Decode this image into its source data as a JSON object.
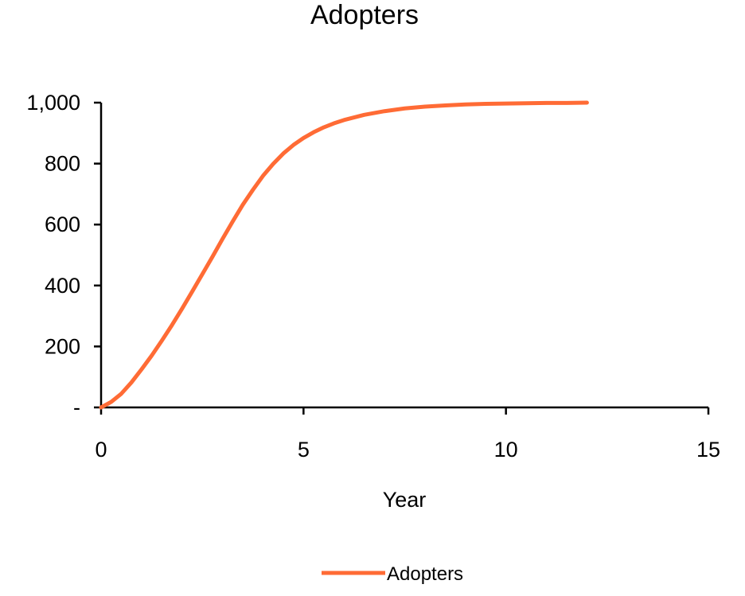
{
  "chart_data": {
    "type": "line",
    "title": "Adopters",
    "xlabel": "Year",
    "ylabel": "",
    "xlim": [
      0,
      15
    ],
    "ylim": [
      0,
      1000
    ],
    "x_ticks": [
      "0",
      "5",
      "10",
      "15"
    ],
    "y_ticks": [
      "-",
      "200",
      "400",
      "600",
      "800",
      "1,000"
    ],
    "grid": false,
    "legend_position": "bottom",
    "series": [
      {
        "name": "Adopters",
        "color": "#ff6b35",
        "x": [
          0,
          0.25,
          0.5,
          0.75,
          1,
          1.25,
          1.5,
          1.75,
          2,
          2.25,
          2.5,
          2.75,
          3,
          3.25,
          3.5,
          3.75,
          4,
          4.25,
          4.5,
          4.75,
          5,
          5.25,
          5.5,
          5.75,
          6,
          6.5,
          7,
          7.5,
          8,
          8.5,
          9,
          9.5,
          10,
          10.5,
          11,
          11.5,
          12
        ],
        "y": [
          0,
          18,
          45,
          82,
          125,
          170,
          219,
          270,
          324,
          380,
          437,
          494,
          553,
          610,
          665,
          714,
          760,
          799,
          833,
          861,
          884,
          903,
          919,
          932,
          943,
          960,
          972,
          981,
          987,
          991,
          994,
          996,
          997,
          998,
          999,
          999,
          1000
        ]
      }
    ]
  }
}
